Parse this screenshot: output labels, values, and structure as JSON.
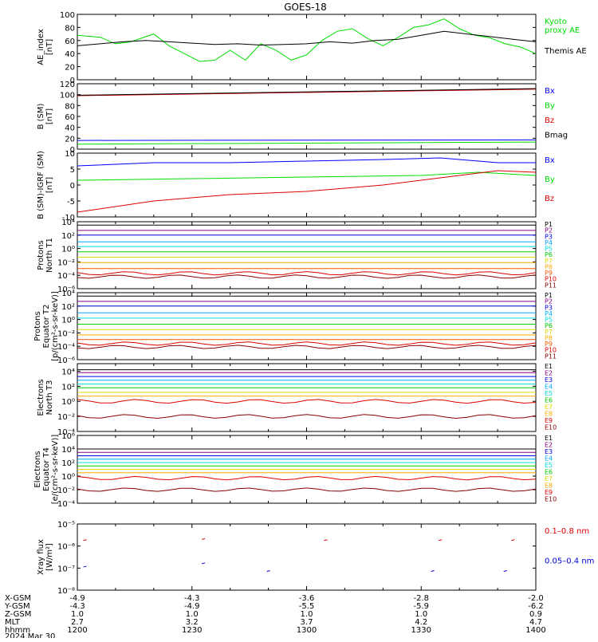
{
  "title": "GOES-18",
  "orbit_table": {
    "row_labels": [
      "X-GSM",
      "Y-GSM",
      "Z-GSM",
      "MLT",
      "hhmm",
      "2024 Mar 30"
    ],
    "columns": [
      {
        "X": "-4.9",
        "Y": "-4.3",
        "Z": "1.0",
        "MLT": "2.7",
        "hhmm": "1200"
      },
      {
        "X": "-4.3",
        "Y": "-4.9",
        "Z": "1.0",
        "MLT": "3.2",
        "hhmm": "1230"
      },
      {
        "X": "-3.6",
        "Y": "-5.5",
        "Z": "1.0",
        "MLT": "3.7",
        "hhmm": "1300"
      },
      {
        "X": "-2.8",
        "Y": "-5.9",
        "Z": "1.0",
        "MLT": "4.2",
        "hhmm": "1330"
      },
      {
        "X": "-2.0",
        "Y": "-6.2",
        "Z": "0.9",
        "MLT": "4.7",
        "hhmm": "1400"
      }
    ]
  },
  "chart_data": [
    {
      "type": "line",
      "ylabel": "AE_index\n[nT]",
      "ylim": [
        0,
        100
      ],
      "yticks": [
        "0",
        "20",
        "40",
        "60",
        "80",
        "100"
      ],
      "x_minutes_start": 0,
      "x_minutes_end": 120,
      "series": [
        {
          "name": "Kyoto\nproxy AE",
          "color": "#00dd00",
          "x": [
            0,
            6,
            10,
            14,
            20,
            24,
            28,
            32,
            36,
            40,
            44,
            48,
            52,
            56,
            60,
            64,
            68,
            72,
            76,
            80,
            84,
            88,
            92,
            96,
            100,
            104,
            108,
            112,
            116,
            120
          ],
          "y": [
            68,
            65,
            55,
            58,
            70,
            52,
            40,
            28,
            30,
            45,
            30,
            55,
            45,
            30,
            38,
            60,
            74,
            78,
            63,
            52,
            65,
            80,
            84,
            93,
            78,
            68,
            64,
            55,
            50,
            40
          ]
        },
        {
          "name": "Themis AE",
          "color": "#000000",
          "x": [
            0,
            6,
            12,
            18,
            24,
            30,
            36,
            42,
            48,
            54,
            60,
            66,
            72,
            78,
            84,
            90,
            96,
            102,
            108,
            114,
            120
          ],
          "y": [
            52,
            55,
            58,
            60,
            58,
            56,
            54,
            55,
            53,
            54,
            55,
            58,
            56,
            60,
            62,
            68,
            74,
            70,
            66,
            62,
            58
          ]
        }
      ]
    },
    {
      "type": "line",
      "ylabel": "B (SM)\n[nT]",
      "ylim": [
        0,
        120
      ],
      "yticks": [
        "0",
        "20",
        "40",
        "60",
        "80",
        "100",
        "120"
      ],
      "series": [
        {
          "name": "Bx",
          "color": "#0000ff",
          "x": [
            0,
            120
          ],
          "y": [
            16,
            17
          ]
        },
        {
          "name": "By",
          "color": "#00dd00",
          "x": [
            0,
            120
          ],
          "y": [
            9,
            13
          ]
        },
        {
          "name": "Bz",
          "color": "#dd0000",
          "x": [
            0,
            120
          ],
          "y": [
            98,
            110
          ]
        },
        {
          "name": "Bmag",
          "color": "#000000",
          "x": [
            0,
            120
          ],
          "y": [
            99,
            111
          ]
        }
      ]
    },
    {
      "type": "line",
      "ylabel": "B (SM)-IGRF (SM)\n[nT]",
      "ylim": [
        -10,
        10
      ],
      "yticks": [
        "-10",
        "-5",
        "0",
        "5",
        "10"
      ],
      "series": [
        {
          "name": "Bx",
          "color": "#0000ff",
          "x": [
            0,
            20,
            40,
            60,
            80,
            95,
            110,
            120
          ],
          "y": [
            6,
            7,
            7,
            7.5,
            8,
            8.5,
            7,
            7
          ]
        },
        {
          "name": "By",
          "color": "#00dd00",
          "x": [
            0,
            30,
            60,
            90,
            105,
            120
          ],
          "y": [
            1.5,
            2,
            2.5,
            3,
            4,
            3
          ]
        },
        {
          "name": "Bz",
          "color": "#dd0000",
          "x": [
            0,
            20,
            40,
            60,
            80,
            100,
            110,
            120
          ],
          "y": [
            -8.5,
            -5,
            -3,
            -2,
            0,
            3,
            4.5,
            4
          ]
        }
      ]
    },
    {
      "type": "line",
      "ylabel": "Protons\nNorth T1",
      "ylim_log": [
        -6,
        4
      ],
      "yticks": [
        "10⁻⁶",
        "10⁻⁴",
        "10⁻²",
        "10⁰",
        "10²",
        "10⁴"
      ],
      "series": [
        {
          "name": "P1",
          "color": "#000000",
          "levels": 3.5
        },
        {
          "name": "P2",
          "color": "#800080",
          "levels": 2.7
        },
        {
          "name": "P3",
          "color": "#0000dd",
          "levels": 2.0
        },
        {
          "name": "P4",
          "color": "#00aaff",
          "levels": 1.0
        },
        {
          "name": "P5",
          "color": "#00dddd",
          "levels": 0.3
        },
        {
          "name": "P6",
          "color": "#00cc00",
          "levels": -0.5
        },
        {
          "name": "P7",
          "color": "#dddd00",
          "levels": -1.3
        },
        {
          "name": "P8",
          "color": "#ffaa00",
          "levels": -2.1
        },
        {
          "name": "P9",
          "color": "#ff5500",
          "levels": -3.0
        },
        {
          "name": "P10",
          "color": "#dd0000",
          "levels": -3.7
        },
        {
          "name": "P11",
          "color": "#880000",
          "levels": -4.2
        }
      ]
    },
    {
      "type": "line",
      "ylabel": "Protons\nEquator T2\n[p/(cm²-s-sr-keV)]",
      "ylim_log": [
        -6,
        4
      ],
      "yticks": [
        "10⁻⁶",
        "10⁻⁴",
        "10⁻²",
        "10⁰",
        "10²",
        "10⁴"
      ],
      "series": [
        {
          "name": "P1",
          "color": "#000000",
          "levels": 3.5
        },
        {
          "name": "P2",
          "color": "#800080",
          "levels": 2.7
        },
        {
          "name": "P3",
          "color": "#0000dd",
          "levels": 2.0
        },
        {
          "name": "P4",
          "color": "#00aaff",
          "levels": 1.0
        },
        {
          "name": "P5",
          "color": "#00dddd",
          "levels": 0.2
        },
        {
          "name": "P6",
          "color": "#00cc00",
          "levels": -0.7
        },
        {
          "name": "P7",
          "color": "#dddd00",
          "levels": -1.5
        },
        {
          "name": "P8",
          "color": "#ffaa00",
          "levels": -2.3
        },
        {
          "name": "P9",
          "color": "#ff5500",
          "levels": -3.0
        },
        {
          "name": "P10",
          "color": "#dd0000",
          "levels": -3.6
        },
        {
          "name": "P11",
          "color": "#880000",
          "levels": -4.1
        }
      ]
    },
    {
      "type": "line",
      "ylabel": "Electrons\nNorth T3",
      "ylim_log": [
        -4,
        5
      ],
      "yticks": [
        "10⁻⁴",
        "10⁻²",
        "10⁰",
        "10²",
        "10⁴"
      ],
      "series": [
        {
          "name": "E1",
          "color": "#000000",
          "levels": 4.2
        },
        {
          "name": "E2",
          "color": "#800080",
          "levels": 3.8
        },
        {
          "name": "E3",
          "color": "#0000dd",
          "levels": 3.3
        },
        {
          "name": "E4",
          "color": "#00aaff",
          "levels": 2.8
        },
        {
          "name": "E5",
          "color": "#00dddd",
          "levels": 2.3
        },
        {
          "name": "E6",
          "color": "#00cc00",
          "levels": 1.8
        },
        {
          "name": "E7",
          "color": "#dddd00",
          "levels": 1.2
        },
        {
          "name": "E8",
          "color": "#ffaa00",
          "levels": 0.7
        },
        {
          "name": "E9",
          "color": "#dd0000",
          "levels": 0.0
        },
        {
          "name": "E10",
          "color": "#880000",
          "levels": -2.0
        }
      ]
    },
    {
      "type": "line",
      "ylabel": "Electrons\nEquator T4\n[e/(cm²-s-sr-keV)]",
      "ylim_log": [
        -4,
        6
      ],
      "yticks": [
        "10⁻⁴",
        "10⁻²",
        "10⁰",
        "10²",
        "10⁴",
        "10⁶"
      ],
      "series": [
        {
          "name": "E1",
          "color": "#000000",
          "levels": 4.0
        },
        {
          "name": "E2",
          "color": "#800080",
          "levels": 3.5
        },
        {
          "name": "E3",
          "color": "#0000dd",
          "levels": 3.0
        },
        {
          "name": "E4",
          "color": "#00aaff",
          "levels": 2.5
        },
        {
          "name": "E5",
          "color": "#00dddd",
          "levels": 2.0
        },
        {
          "name": "E6",
          "color": "#00cc00",
          "levels": 1.5
        },
        {
          "name": "E7",
          "color": "#dddd00",
          "levels": 1.0
        },
        {
          "name": "E8",
          "color": "#ffaa00",
          "levels": 0.5
        },
        {
          "name": "E9",
          "color": "#dd0000",
          "levels": -0.3
        },
        {
          "name": "E10",
          "color": "#880000",
          "levels": -2.0
        }
      ]
    },
    {
      "type": "scatter",
      "ylabel": "Xray flux\n[W/m²]",
      "ylim_log": [
        -8,
        -5
      ],
      "yticks": [
        "10⁻⁸",
        "10⁻⁷",
        "10⁻⁶",
        "10⁻⁵"
      ],
      "series": [
        {
          "name": "0.1–0.8 nm",
          "color": "#dd0000",
          "x": [
            2,
            33,
            65,
            95,
            114
          ],
          "y": [
            -5.75,
            -5.7,
            -5.75,
            -5.75,
            -5.75
          ]
        },
        {
          "name": "0.05–0.4 nm",
          "color": "#0000dd",
          "x": [
            2,
            33,
            50,
            93,
            112
          ],
          "y": [
            -6.95,
            -6.8,
            -7.15,
            -7.15,
            -7.15
          ]
        }
      ]
    }
  ]
}
